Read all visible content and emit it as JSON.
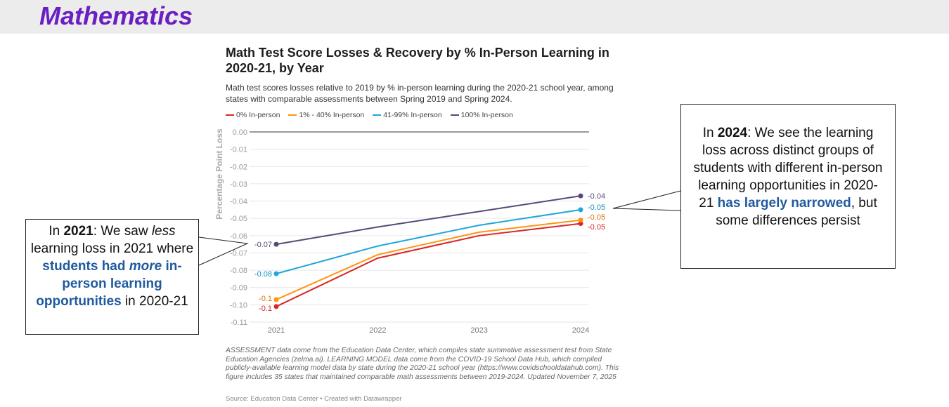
{
  "header": {
    "title": "Mathematics"
  },
  "chart_data": {
    "type": "line",
    "title": "Math Test Score Losses & Recovery by % In-Person Learning in 2020-21, by Year",
    "subtitle": "Math test scores losses relative to 2019 by % in-person learning during the 2020-21 school year, among states with comparable assessments between Spring 2019 and Spring 2024.",
    "xlabel": "",
    "ylabel": "Percentage Point Loss",
    "x": [
      "2021",
      "2022",
      "2023",
      "2024"
    ],
    "ylim": [
      -0.11,
      0.0
    ],
    "yticks": [
      "0.00",
      "-0.01",
      "-0.02",
      "-0.03",
      "-0.04",
      "-0.05",
      "-0.06",
      "-0.07",
      "-0.08",
      "-0.09",
      "-0.10",
      "-0.11"
    ],
    "legend_position": "top-left",
    "series": [
      {
        "name": "0% In-person",
        "color": "#d62728",
        "values": [
          -0.101,
          -0.073,
          -0.06,
          -0.053
        ],
        "start_label": "-0.1",
        "end_label": "-0.05",
        "label_color": "#d62728"
      },
      {
        "name": "1% - 40% In-person",
        "color": "#ff9410",
        "values": [
          -0.097,
          -0.071,
          -0.058,
          -0.051
        ],
        "start_label": "-0.1",
        "end_label": "-0.05",
        "label_color": "#e0730a"
      },
      {
        "name": "41-99% In-person",
        "color": "#1ea7db",
        "values": [
          -0.082,
          -0.066,
          -0.054,
          -0.045
        ],
        "start_label": "-0.08",
        "end_label": "-0.05",
        "label_color": "#1a8fc0"
      },
      {
        "name": "100% In-person",
        "color": "#574a79",
        "values": [
          -0.065,
          -0.055,
          -0.046,
          -0.037
        ],
        "start_label": "-0.07",
        "end_label": "-0.04",
        "label_color": "#574a79"
      }
    ],
    "notes": "ASSESSMENT data come from the Education Data Center, which compiles state summative assessment test from State Education Agencies (zelma.ai). LEARNING MODEL data come from the COVID-19 School Data Hub, which compiled publicly-available learning model data by state during the 2020-21 school year (https://www.covidschooldatahub.com). This figure includes 35 states that maintained comparable math assessments between 2019-2024. Updated November 7, 2025",
    "source": "Source: Education Data Center • Created with Datawrapper"
  },
  "callouts": {
    "left": {
      "p1": "In ",
      "year": "2021",
      "p2": ": We saw ",
      "less": "less",
      "p3": " learning loss in 2021 where ",
      "b1": "students had ",
      "more": "more",
      "b2": " in-person learning opportunities",
      "p4": " in 2020-21"
    },
    "right": {
      "p1": "In ",
      "year": "2024",
      "p2": ": We see the learning loss across distinct groups of students with different in-person learning opportunities in 2020-21 ",
      "b1": "has largely narrowed",
      "p3": ", but some differences persist"
    }
  }
}
